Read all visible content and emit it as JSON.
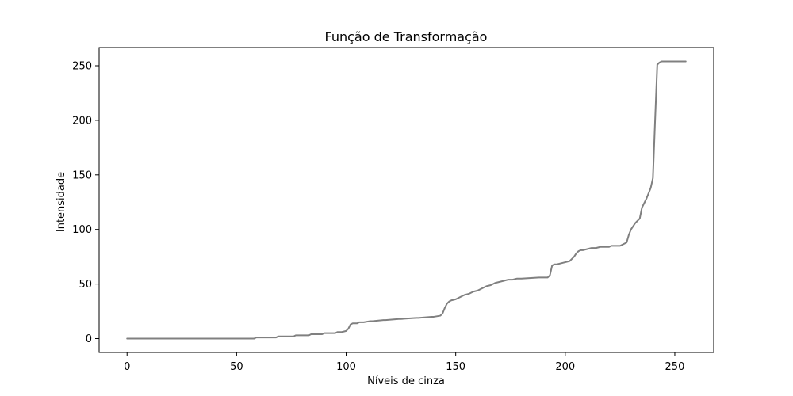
{
  "chart_data": {
    "type": "line",
    "title": "Função de Transformação",
    "xlabel": "Níveis de cinza",
    "ylabel": "Intensidade",
    "xlim": [
      -12.75,
      267.75
    ],
    "ylim": [
      -12.7,
      266.7
    ],
    "x_ticks": [
      0,
      50,
      100,
      150,
      200,
      250
    ],
    "y_ticks": [
      0,
      50,
      100,
      150,
      200,
      250
    ],
    "x_tick_labels": [
      "0",
      "50",
      "100",
      "150",
      "200",
      "250"
    ],
    "y_tick_labels": [
      "0",
      "50",
      "100",
      "150",
      "200",
      "250"
    ],
    "grid": false,
    "line_color": "#808080",
    "series": [
      {
        "x": [
          0,
          58,
          59,
          68,
          69,
          76,
          77,
          83,
          84,
          89,
          90,
          95,
          96,
          98,
          100,
          101,
          102,
          103,
          104,
          105,
          106,
          107,
          108,
          111,
          112,
          117,
          118,
          124,
          125,
          132,
          133,
          139,
          140,
          143,
          144,
          145,
          146,
          147,
          148,
          150,
          152,
          154,
          156,
          158,
          160,
          162,
          164,
          166,
          168,
          170,
          172,
          174,
          176,
          178,
          180,
          188,
          189,
          192,
          193,
          194,
          195,
          196,
          198,
          200,
          202,
          204,
          205,
          206,
          207,
          208,
          210,
          212,
          214,
          216,
          220,
          221,
          225,
          226,
          228,
          229,
          230,
          231,
          232,
          234,
          235,
          236,
          237,
          238,
          239,
          240,
          241,
          242,
          243,
          244,
          255
        ],
        "y": [
          0,
          0,
          1,
          1,
          2,
          2,
          3,
          3,
          4,
          4,
          5,
          5,
          6,
          6,
          7,
          9,
          13,
          14,
          14,
          14,
          15,
          15,
          15,
          16,
          16,
          17,
          17,
          18,
          18,
          19,
          19,
          20,
          20,
          21,
          23,
          28,
          32,
          34,
          35,
          36,
          38,
          40,
          41,
          43,
          44,
          46,
          48,
          49,
          51,
          52,
          53,
          54,
          54,
          55,
          55,
          56,
          56,
          56,
          58,
          67,
          68,
          68,
          69,
          70,
          71,
          75,
          78,
          80,
          81,
          81,
          82,
          83,
          83,
          84,
          84,
          85,
          85,
          86,
          88,
          95,
          100,
          103,
          106,
          110,
          120,
          124,
          128,
          133,
          138,
          147,
          200,
          251,
          253,
          254,
          254
        ]
      }
    ]
  }
}
